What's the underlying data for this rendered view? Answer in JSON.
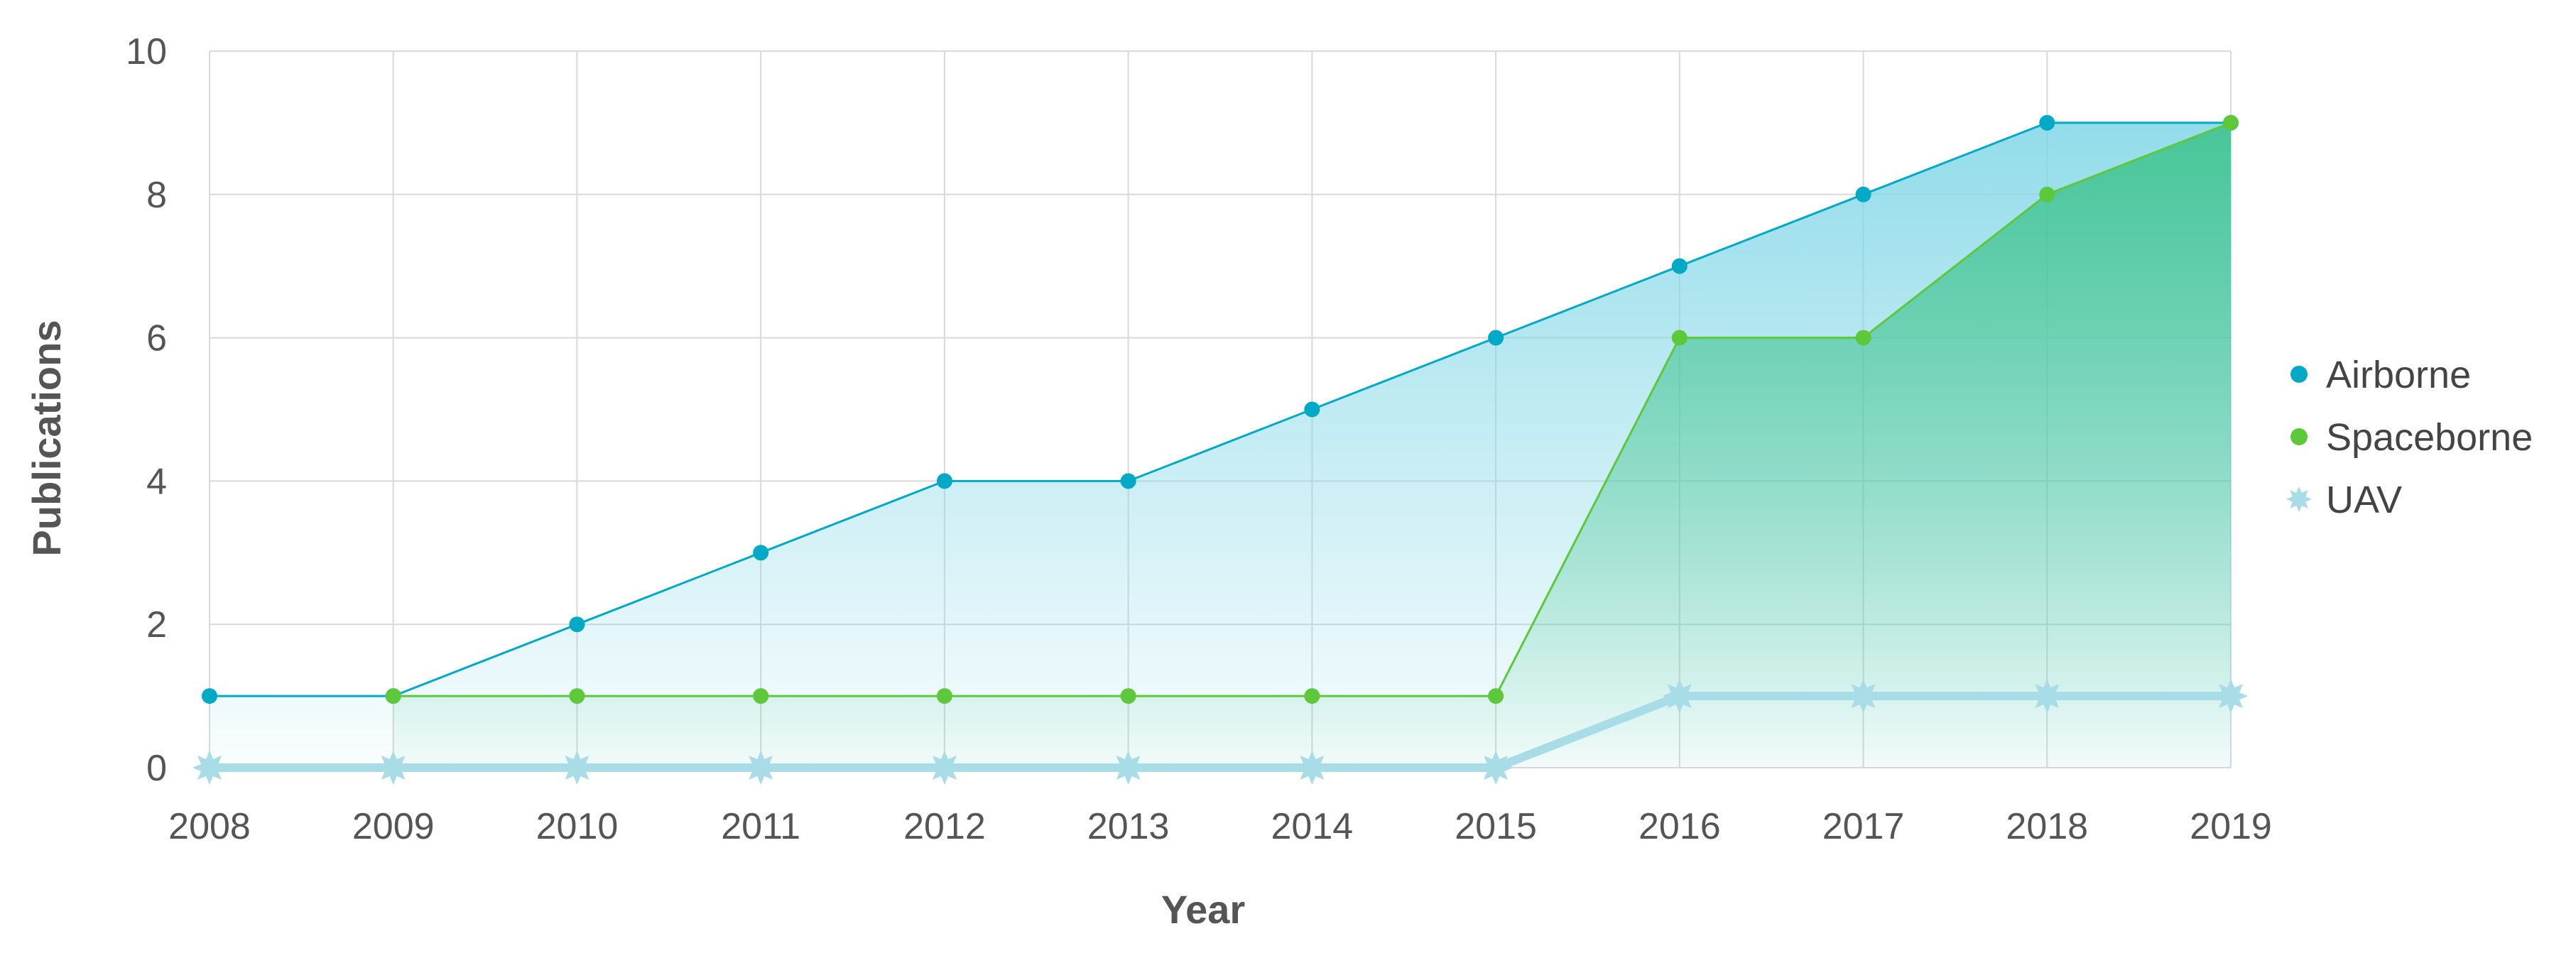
{
  "chart_data": {
    "type": "area",
    "x": [
      "2008",
      "2009",
      "2010",
      "2011",
      "2012",
      "2013",
      "2014",
      "2015",
      "2016",
      "2017",
      "2018",
      "2019"
    ],
    "y_ticks": [
      "0",
      "2",
      "4",
      "6",
      "8",
      "10"
    ],
    "ylim": [
      0,
      10
    ],
    "xlabel": "Year",
    "ylabel": "Publications",
    "grid": true,
    "legend_position": "right",
    "series": [
      {
        "name": "Airborne",
        "color": "#00a9c6",
        "fill_color": "#7fd6e6",
        "marker": "circle",
        "values": [
          1,
          1,
          2,
          3,
          4,
          4,
          5,
          6,
          7,
          8,
          9,
          9
        ]
      },
      {
        "name": "Spaceborne",
        "color": "#5cc83a",
        "fill_color": "#3cc28a",
        "marker": "circle",
        "values": [
          null,
          1,
          1,
          1,
          1,
          1,
          1,
          1,
          6,
          6,
          8,
          9
        ]
      },
      {
        "name": "UAV",
        "color": "#a8dce6",
        "fill_color": "#a8dce6",
        "marker": "star",
        "values": [
          0,
          0,
          0,
          0,
          0,
          0,
          0,
          0,
          1,
          1,
          1,
          1
        ]
      }
    ]
  }
}
